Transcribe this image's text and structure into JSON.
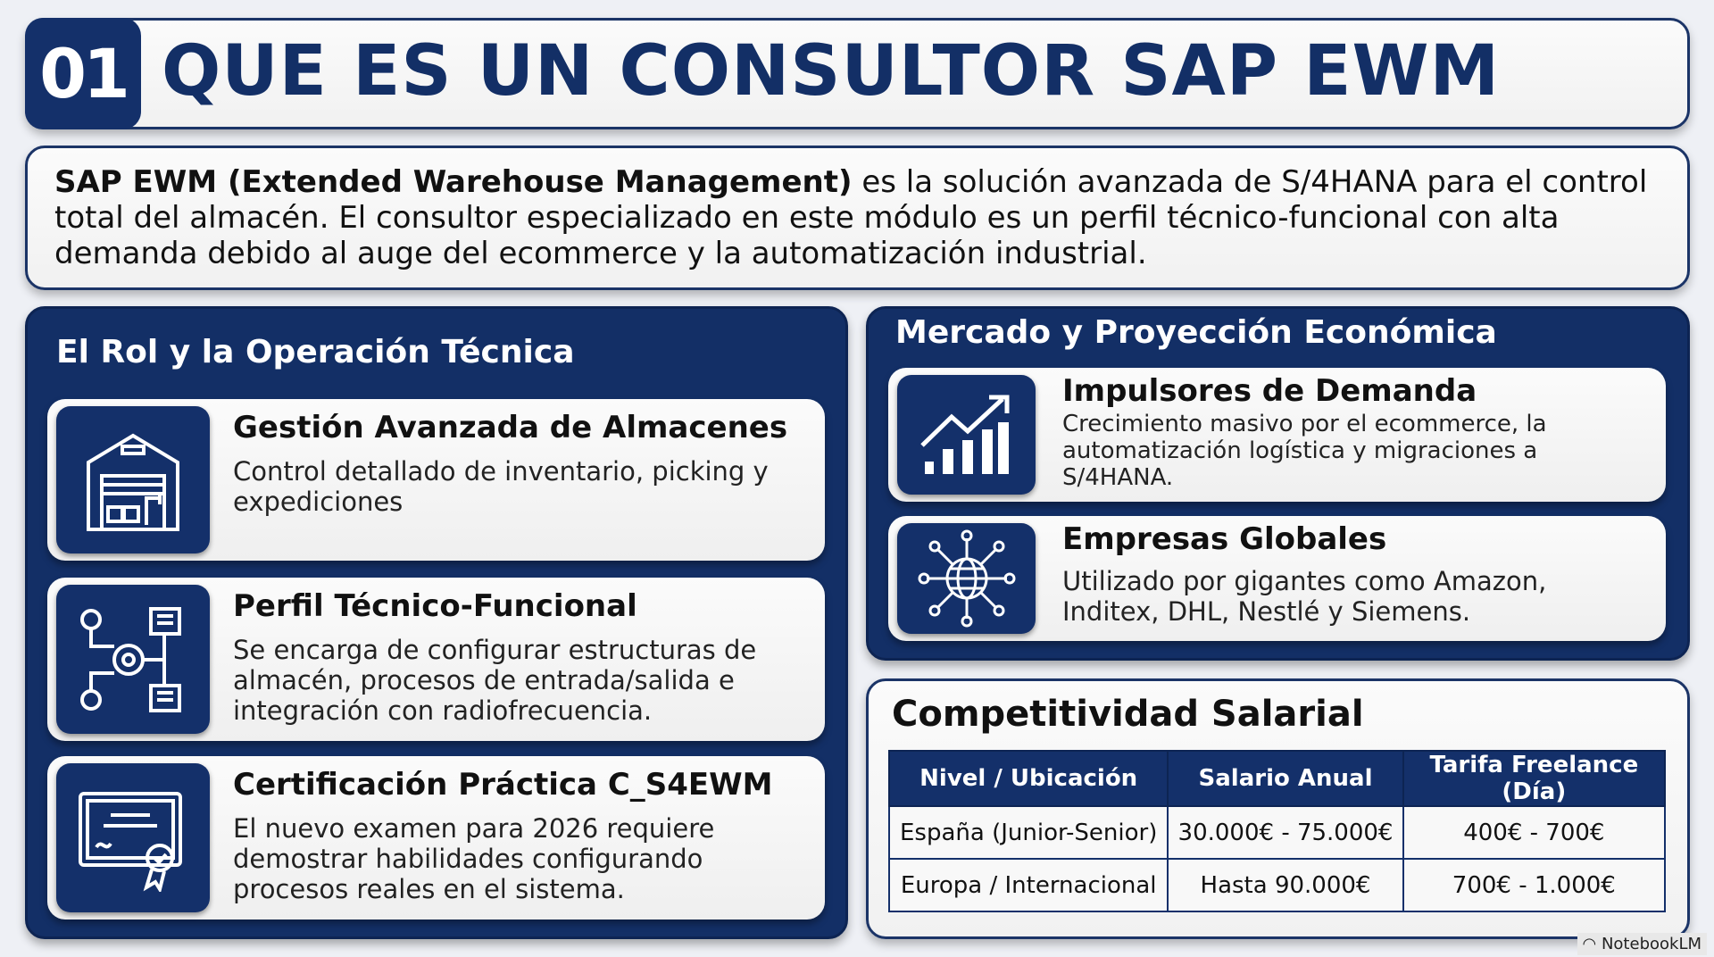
{
  "header": {
    "number": "01",
    "title": "QUE ES UN CONSULTOR SAP EWM"
  },
  "intro": {
    "bold": "SAP EWM (Extended Warehouse Management)",
    "text": " es la solución avanzada de S/4HANA para el control total del almacén. El consultor especializado en este módulo es un perfil técnico-funcional con alta demanda debido al auge del ecommerce y la automatización industrial."
  },
  "left_panel": {
    "title": "El Rol y la Operación Técnica",
    "cards": [
      {
        "icon": "warehouse-icon",
        "title": "Gestión Avanzada de Almacenes",
        "desc": "Control detallado de inventario, picking y expediciones"
      },
      {
        "icon": "gear-workflow-icon",
        "title": "Perfil Técnico-Funcional",
        "desc": "Se encarga de configurar estructuras de almacén, procesos de entrada/salida e integración con radiofrecuencia."
      },
      {
        "icon": "certificate-icon",
        "title": "Certificación Práctica C_S4EWM",
        "desc": "El nuevo examen para 2026 requiere demostrar habilidades configurando procesos reales en el sistema."
      }
    ]
  },
  "right_panel": {
    "title": "Mercado y Proyección Económica",
    "cards": [
      {
        "icon": "growth-chart-icon",
        "title": "Impulsores de Demanda",
        "desc": "Crecimiento masivo por el ecommerce, la automatización logística y migraciones a S/4HANA."
      },
      {
        "icon": "globe-network-icon",
        "title": "Empresas Globales",
        "desc": "Utilizado por gigantes como Amazon, Inditex, DHL, Nestlé y Siemens."
      }
    ]
  },
  "salary": {
    "title": "Competitividad Salarial",
    "headers": [
      "Nivel / Ubicación",
      "Salario Anual",
      "Tarifa Freelance (Día)"
    ],
    "rows": [
      [
        "España (Junior-Senior)",
        "30.000€ - 75.000€",
        "400€ - 700€"
      ],
      [
        "Europa / Internacional",
        "Hasta 90.000€",
        "700€ - 1.000€"
      ]
    ]
  },
  "brand": "NotebookLM",
  "colors": {
    "navy": "#14306a",
    "background": "#eef0f5"
  }
}
